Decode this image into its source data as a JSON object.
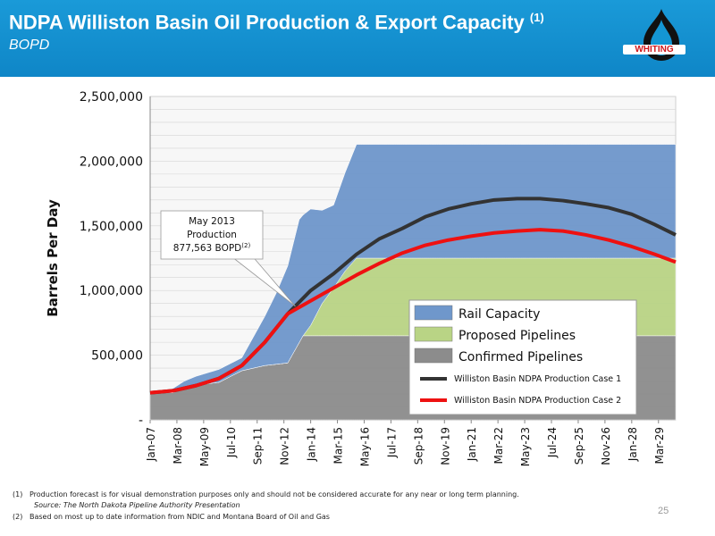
{
  "header": {
    "title": "NDPA Williston Basin Oil Production & Export Capacity",
    "title_sup": "(1)",
    "subtitle": "BOPD",
    "logo_text": "WHITING"
  },
  "colors": {
    "header_blue": "#1496d4",
    "rail": "#6f97cb",
    "proposed": "#b9d485",
    "confirmed": "#8c8c8c",
    "case1": "#333333",
    "case2": "#ee1111",
    "logo_red": "#d0161a"
  },
  "chart_data": {
    "type": "area",
    "ylabel": "Barrels Per Day",
    "xlabel": "",
    "ylim": [
      0,
      2500000
    ],
    "y_ticks": [
      0,
      500000,
      1000000,
      1500000,
      2000000,
      2500000
    ],
    "y_tick_labels": [
      "-",
      "500,000",
      "1,000,000",
      "1,500,000",
      "2,000,000",
      "2,500,000"
    ],
    "x_tick_labels": [
      "Jan-07",
      "Mar-08",
      "May-09",
      "Jul-10",
      "Sep-11",
      "Nov-12",
      "Jan-14",
      "Mar-15",
      "May-16",
      "Jul-17",
      "Sep-18",
      "Nov-19",
      "Jan-21",
      "Mar-22",
      "May-23",
      "Jul-24",
      "Sep-25",
      "Nov-26",
      "Jan-28",
      "Mar-29"
    ],
    "x_range": [
      "Jan-07",
      "Dec-29"
    ],
    "grid": true,
    "legend_position": "lower-right",
    "stacked_areas": [
      {
        "name": "Confirmed Pipelines",
        "points": [
          [
            "Jan-07",
            210000
          ],
          [
            "Jan-08",
            210000
          ],
          [
            "Jul-08",
            250000
          ],
          [
            "Jan-09",
            270000
          ],
          [
            "Jan-10",
            290000
          ],
          [
            "Jan-11",
            380000
          ],
          [
            "Jan-12",
            420000
          ],
          [
            "Jan-13",
            440000
          ],
          [
            "Sep-13",
            650000
          ],
          [
            "Dec-29",
            650000
          ]
        ]
      },
      {
        "name": "Proposed Pipelines",
        "points": [
          [
            "Jan-07",
            0
          ],
          [
            "Sep-13",
            0
          ],
          [
            "Jan-14",
            80000
          ],
          [
            "Jul-14",
            250000
          ],
          [
            "Jan-15",
            370000
          ],
          [
            "Jul-15",
            500000
          ],
          [
            "Jan-16",
            600000
          ],
          [
            "Dec-29",
            600000
          ]
        ]
      },
      {
        "name": "Rail Capacity",
        "points": [
          [
            "Jan-07",
            0
          ],
          [
            "Jan-10",
            100000
          ],
          [
            "Jan-11",
            100000
          ],
          [
            "Jan-12",
            380000
          ],
          [
            "Jul-12",
            550000
          ],
          [
            "Jan-13",
            750000
          ],
          [
            "Jul-13",
            950000
          ],
          [
            "Jan-14",
            900000
          ],
          [
            "Jul-14",
            720000
          ],
          [
            "Jan-15",
            640000
          ],
          [
            "Jan-16",
            880000
          ],
          [
            "Dec-29",
            880000
          ]
        ]
      }
    ],
    "series": [
      {
        "name": "Williston Basin NDPA Production Case 1",
        "points": [
          [
            "Jan-07",
            210000
          ],
          [
            "Jan-08",
            225000
          ],
          [
            "Jan-09",
            265000
          ],
          [
            "Jan-10",
            320000
          ],
          [
            "Jan-11",
            420000
          ],
          [
            "Jan-12",
            600000
          ],
          [
            "Jan-13",
            820000
          ],
          [
            "Jan-14",
            1000000
          ],
          [
            "Jan-15",
            1130000
          ],
          [
            "Jan-16",
            1280000
          ],
          [
            "Jan-17",
            1400000
          ],
          [
            "Jan-18",
            1480000
          ],
          [
            "Jan-19",
            1570000
          ],
          [
            "Jan-20",
            1630000
          ],
          [
            "Jan-21",
            1670000
          ],
          [
            "Jan-22",
            1700000
          ],
          [
            "Jan-23",
            1710000
          ],
          [
            "Jan-24",
            1710000
          ],
          [
            "Jan-25",
            1695000
          ],
          [
            "Jan-26",
            1670000
          ],
          [
            "Jan-27",
            1640000
          ],
          [
            "Jan-28",
            1590000
          ],
          [
            "Jan-29",
            1510000
          ],
          [
            "Dec-29",
            1430000
          ]
        ]
      },
      {
        "name": "Williston Basin NDPA Production Case 2",
        "points": [
          [
            "Jan-07",
            210000
          ],
          [
            "Jan-08",
            225000
          ],
          [
            "Jan-09",
            265000
          ],
          [
            "Jan-10",
            320000
          ],
          [
            "Jan-11",
            420000
          ],
          [
            "Jan-12",
            600000
          ],
          [
            "Jan-13",
            820000
          ],
          [
            "Jan-14",
            920000
          ],
          [
            "Jan-15",
            1020000
          ],
          [
            "Jan-16",
            1120000
          ],
          [
            "Jan-17",
            1210000
          ],
          [
            "Jan-18",
            1290000
          ],
          [
            "Jan-19",
            1350000
          ],
          [
            "Jan-20",
            1390000
          ],
          [
            "Jan-21",
            1420000
          ],
          [
            "Jan-22",
            1445000
          ],
          [
            "Jan-23",
            1460000
          ],
          [
            "Jan-24",
            1470000
          ],
          [
            "Jan-25",
            1460000
          ],
          [
            "Jan-26",
            1430000
          ],
          [
            "Jan-27",
            1390000
          ],
          [
            "Jan-28",
            1340000
          ],
          [
            "Jan-29",
            1280000
          ],
          [
            "Dec-29",
            1220000
          ]
        ]
      }
    ],
    "legend": [
      "Rail Capacity",
      "Proposed Pipelines",
      "Confirmed Pipelines",
      "Williston Basin NDPA Production Case 1",
      "Williston Basin NDPA Production Case 2"
    ],
    "annotation": {
      "lines": [
        "May 2013",
        "Production",
        "877,563 BOPD"
      ],
      "sup": "(2)",
      "point": [
        "May-13",
        877563
      ]
    }
  },
  "footnotes": [
    {
      "num": "(1)",
      "text": "Production forecast is for visual demonstration purposes only and should not be considered accurate for any near or long term planning."
    },
    {
      "num": "",
      "text": "Source: The North Dakota Pipeline Authority Presentation"
    },
    {
      "num": "(2)",
      "text": "Based on most up to date information from NDIC and Montana Board of Oil and Gas"
    }
  ],
  "page_number": "25"
}
